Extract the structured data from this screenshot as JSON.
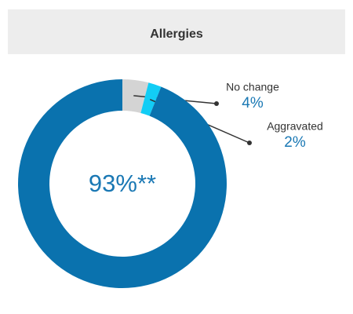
{
  "chart_data": {
    "type": "donut",
    "title": "Allergies",
    "categories": [
      "No change",
      "Aggravated",
      null
    ],
    "values": [
      4,
      2,
      93
    ],
    "value_labels": [
      "4%",
      "2%",
      "93%**"
    ],
    "colors": [
      "#d4d4d4",
      "#12cdf5",
      "#0a72ae"
    ]
  }
}
